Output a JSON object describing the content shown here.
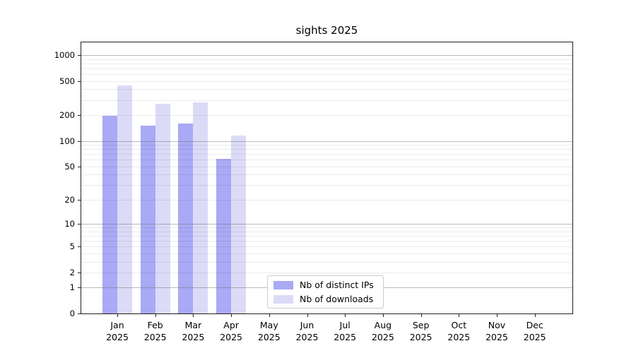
{
  "title": "sights 2025",
  "chart_data": {
    "type": "bar",
    "title": "sights 2025",
    "categories": [
      "Jan",
      "Feb",
      "Mar",
      "Apr",
      "May",
      "Jun",
      "Jul",
      "Aug",
      "Sep",
      "Oct",
      "Nov",
      "Dec"
    ],
    "year_label": "2025",
    "series": [
      {
        "name": "Nb of distinct IPs",
        "color": "#a9a9f5",
        "values": [
          195,
          150,
          160,
          62,
          0,
          0,
          0,
          0,
          0,
          0,
          0,
          0
        ]
      },
      {
        "name": "Nb of downloads",
        "color": "#dbdbf8",
        "values": [
          440,
          270,
          280,
          115,
          0,
          0,
          0,
          0,
          0,
          0,
          0,
          0
        ]
      }
    ],
    "y_scale": "log(1+x)",
    "y_ticks": [
      0,
      1,
      2,
      5,
      10,
      20,
      50,
      100,
      200,
      500,
      1000
    ],
    "y_major_gridlines": [
      1,
      10,
      100,
      1000
    ],
    "ylim": [
      0,
      1400
    ],
    "xlabel": "",
    "ylabel": "",
    "grid": true,
    "legend_position": "lower center"
  }
}
